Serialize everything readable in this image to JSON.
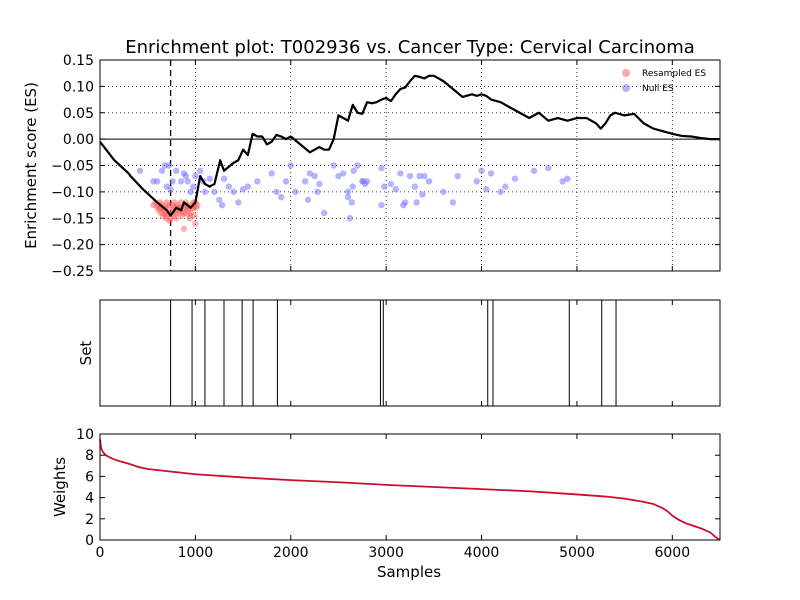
{
  "chart_data": {
    "title": "Enrichment plot: T002936 vs. Cancer Type: Cervical Carcinoma",
    "xlabel": "Samples",
    "xlim": [
      0,
      6500
    ],
    "xticks": [
      "0",
      "1000",
      "2000",
      "3000",
      "4000",
      "5000",
      "6000"
    ],
    "xtick_values": [
      0,
      1000,
      2000,
      3000,
      4000,
      5000,
      6000
    ],
    "colors": {
      "es_line": "#000000",
      "resampled": "#ff5555",
      "null": "#7777ff",
      "weights": "#c8102e"
    },
    "panels": [
      {
        "id": "es",
        "type": "line+scatter",
        "ylabel": "Enrichment score (ES)",
        "ylim": [
          -0.25,
          0.15
        ],
        "ytick_values": [
          -0.25,
          -0.2,
          -0.15,
          -0.1,
          -0.05,
          0.0,
          0.05,
          0.1,
          0.15
        ],
        "yticks": [
          "−0.25",
          "−0.20",
          "−0.15",
          "−0.10",
          "−0.05",
          "0.00",
          "0.05",
          "0.10",
          "0.15"
        ],
        "grid": true,
        "peak_x": 740,
        "legend": {
          "placement": "top-right",
          "entries": [
            "Resampled ES",
            "Null ES"
          ]
        },
        "es_curve": {
          "x": [
            0,
            150,
            300,
            320,
            450,
            600,
            700,
            740,
            800,
            850,
            880,
            950,
            1000,
            1050,
            1100,
            1150,
            1200,
            1260,
            1300,
            1400,
            1450,
            1500,
            1550,
            1600,
            1650,
            1700,
            1750,
            1800,
            1850,
            1900,
            1950,
            2000,
            2100,
            2200,
            2250,
            2300,
            2350,
            2400,
            2450,
            2500,
            2550,
            2600,
            2650,
            2700,
            2750,
            2800,
            2850,
            2900,
            2950,
            3000,
            3050,
            3100,
            3150,
            3200,
            3250,
            3300,
            3350,
            3400,
            3450,
            3500,
            3550,
            3600,
            3700,
            3800,
            3900,
            3950,
            4000,
            4050,
            4100,
            4200,
            4300,
            4400,
            4500,
            4600,
            4700,
            4800,
            4900,
            5000,
            5100,
            5200,
            5250,
            5300,
            5350,
            5400,
            5500,
            5600,
            5700,
            5800,
            5900,
            6000,
            6100,
            6200,
            6300,
            6400,
            6500
          ],
          "y": [
            -0.005,
            -0.04,
            -0.065,
            -0.07,
            -0.095,
            -0.12,
            -0.135,
            -0.145,
            -0.13,
            -0.135,
            -0.12,
            -0.13,
            -0.12,
            -0.07,
            -0.085,
            -0.09,
            -0.085,
            -0.04,
            -0.06,
            -0.045,
            -0.04,
            -0.02,
            -0.03,
            0.01,
            0.005,
            0.005,
            -0.01,
            -0.005,
            0.008,
            0.005,
            0.0,
            0.005,
            -0.01,
            -0.025,
            -0.02,
            -0.015,
            -0.02,
            -0.02,
            0.0,
            0.045,
            0.04,
            0.035,
            0.065,
            0.05,
            0.048,
            0.07,
            0.068,
            0.07,
            0.075,
            0.078,
            0.072,
            0.085,
            0.095,
            0.098,
            0.11,
            0.12,
            0.118,
            0.115,
            0.12,
            0.12,
            0.115,
            0.11,
            0.095,
            0.08,
            0.085,
            0.082,
            0.085,
            0.082,
            0.075,
            0.07,
            0.06,
            0.05,
            0.04,
            0.05,
            0.035,
            0.04,
            0.035,
            0.04,
            0.04,
            0.03,
            0.02,
            0.03,
            0.045,
            0.05,
            0.045,
            0.048,
            0.03,
            0.02,
            0.015,
            0.01,
            0.006,
            0.005,
            0.002,
            0.0,
            0.0
          ]
        },
        "resampled_es": {
          "x": [
            560,
            580,
            600,
            610,
            620,
            630,
            640,
            650,
            660,
            670,
            680,
            690,
            700,
            710,
            720,
            730,
            740,
            750,
            760,
            770,
            780,
            790,
            800,
            810,
            820,
            830,
            840,
            850,
            860,
            870,
            880,
            890,
            900,
            910,
            920,
            930,
            940,
            950,
            960,
            970,
            980,
            990,
            1000,
            1010,
            1020,
            630,
            650,
            680,
            700,
            720,
            760,
            780,
            800,
            840,
            880,
            900,
            940,
            980,
            1000
          ],
          "y": [
            -0.125,
            -0.12,
            -0.13,
            -0.125,
            -0.135,
            -0.12,
            -0.14,
            -0.13,
            -0.145,
            -0.135,
            -0.14,
            -0.15,
            -0.145,
            -0.13,
            -0.14,
            -0.155,
            -0.15,
            -0.14,
            -0.135,
            -0.145,
            -0.13,
            -0.14,
            -0.15,
            -0.125,
            -0.13,
            -0.14,
            -0.135,
            -0.12,
            -0.145,
            -0.13,
            -0.17,
            -0.14,
            -0.13,
            -0.125,
            -0.135,
            -0.13,
            -0.15,
            -0.14,
            -0.125,
            -0.13,
            -0.12,
            -0.145,
            -0.16,
            -0.13,
            -0.125,
            -0.13,
            -0.125,
            -0.13,
            -0.12,
            -0.125,
            -0.125,
            -0.12,
            -0.135,
            -0.13,
            -0.14,
            -0.12,
            -0.145,
            -0.13,
            -0.12
          ]
        },
        "null_es": {
          "x": [
            420,
            560,
            600,
            650,
            680,
            700,
            720,
            740,
            760,
            800,
            850,
            880,
            900,
            920,
            950,
            980,
            1000,
            1050,
            1080,
            1100,
            1150,
            1200,
            1250,
            1280,
            1300,
            1350,
            1400,
            1450,
            1500,
            1550,
            1650,
            1800,
            1850,
            1900,
            1950,
            2000,
            2050,
            2150,
            2180,
            2200,
            2250,
            2280,
            2300,
            2350,
            2450,
            2500,
            2550,
            2600,
            2600,
            2620,
            2640,
            2650,
            2660,
            2700,
            2750,
            2760,
            2780,
            2800,
            2950,
            2950,
            2980,
            3050,
            3100,
            3150,
            3180,
            3200,
            3250,
            3300,
            3320,
            3350,
            3380,
            3400,
            3450,
            3600,
            3700,
            3750,
            3950,
            4000,
            4050,
            4100,
            4200,
            4250,
            4350,
            4550,
            4700,
            4850,
            4900
          ],
          "y": [
            -0.06,
            -0.08,
            -0.08,
            -0.06,
            -0.05,
            -0.09,
            -0.05,
            -0.095,
            -0.08,
            -0.06,
            -0.08,
            -0.065,
            -0.07,
            -0.08,
            -0.1,
            -0.09,
            -0.07,
            -0.06,
            -0.08,
            -0.1,
            -0.075,
            -0.1,
            -0.115,
            -0.125,
            -0.075,
            -0.09,
            -0.1,
            -0.12,
            -0.095,
            -0.09,
            -0.08,
            -0.065,
            -0.1,
            -0.11,
            -0.08,
            -0.05,
            -0.1,
            -0.08,
            -0.115,
            -0.065,
            -0.07,
            -0.1,
            -0.085,
            -0.14,
            -0.05,
            -0.07,
            -0.065,
            -0.1,
            -0.11,
            -0.15,
            -0.12,
            -0.09,
            -0.06,
            -0.05,
            -0.08,
            -0.08,
            -0.085,
            -0.08,
            -0.125,
            -0.055,
            -0.09,
            -0.085,
            -0.095,
            -0.065,
            -0.125,
            -0.12,
            -0.07,
            -0.09,
            -0.12,
            -0.07,
            -0.105,
            -0.07,
            -0.08,
            -0.1,
            -0.12,
            -0.07,
            -0.08,
            -0.06,
            -0.095,
            -0.065,
            -0.1,
            -0.09,
            -0.075,
            -0.06,
            -0.055,
            -0.08,
            -0.075
          ]
        }
      },
      {
        "id": "set",
        "type": "rug",
        "ylabel": "Set",
        "hits_x": [
          740,
          965,
          1100,
          1300,
          1490,
          1605,
          1860,
          2940,
          2970,
          4065,
          4120,
          4920,
          5260,
          5410
        ]
      },
      {
        "id": "weights",
        "type": "line",
        "ylabel": "Weights",
        "ylim": [
          0,
          10
        ],
        "ytick_values": [
          0,
          2,
          4,
          6,
          8,
          10
        ],
        "yticks": [
          "0",
          "2",
          "4",
          "6",
          "8",
          "10"
        ],
        "x": [
          0,
          10,
          30,
          60,
          100,
          150,
          200,
          300,
          400,
          500,
          700,
          1000,
          1500,
          2000,
          2500,
          3000,
          3500,
          4000,
          4500,
          5000,
          5300,
          5500,
          5700,
          5800,
          5850,
          5900,
          5950,
          6000,
          6050,
          6100,
          6150,
          6200,
          6300,
          6400,
          6450,
          6500
        ],
        "y": [
          9.5,
          8.7,
          8.3,
          8.0,
          7.8,
          7.6,
          7.45,
          7.2,
          6.9,
          6.7,
          6.5,
          6.2,
          5.9,
          5.65,
          5.45,
          5.2,
          5.0,
          4.8,
          4.6,
          4.3,
          4.1,
          3.9,
          3.6,
          3.4,
          3.2,
          3.0,
          2.7,
          2.3,
          2.0,
          1.75,
          1.55,
          1.4,
          1.1,
          0.7,
          0.3,
          0.0
        ]
      }
    ]
  }
}
